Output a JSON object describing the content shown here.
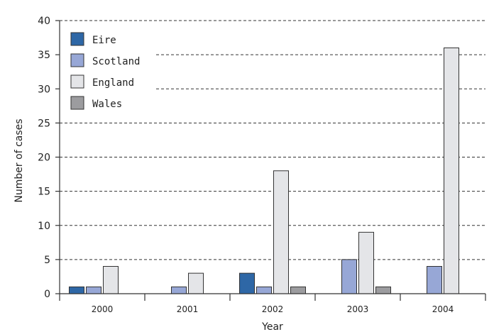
{
  "chart_data": {
    "type": "bar",
    "categories": [
      "2000",
      "2001",
      "2002",
      "2003",
      "2004"
    ],
    "series": [
      {
        "name": "Eire",
        "color": "#2e67a6",
        "values": [
          1,
          0,
          3,
          0,
          0
        ]
      },
      {
        "name": "Scotland",
        "color": "#97a7d6",
        "values": [
          1,
          1,
          1,
          5,
          4
        ]
      },
      {
        "name": "England",
        "color": "#e4e5e8",
        "values": [
          4,
          3,
          18,
          9,
          36
        ]
      },
      {
        "name": "Wales",
        "color": "#9c9c9f",
        "values": [
          0,
          0,
          1,
          1,
          0
        ]
      }
    ],
    "xlabel": "Year",
    "ylabel": "Number of cases",
    "ylim": [
      0,
      40
    ],
    "yticks": [
      0,
      5,
      10,
      15,
      20,
      25,
      30,
      35,
      40
    ],
    "grid": true,
    "legend_position": "top-left"
  }
}
